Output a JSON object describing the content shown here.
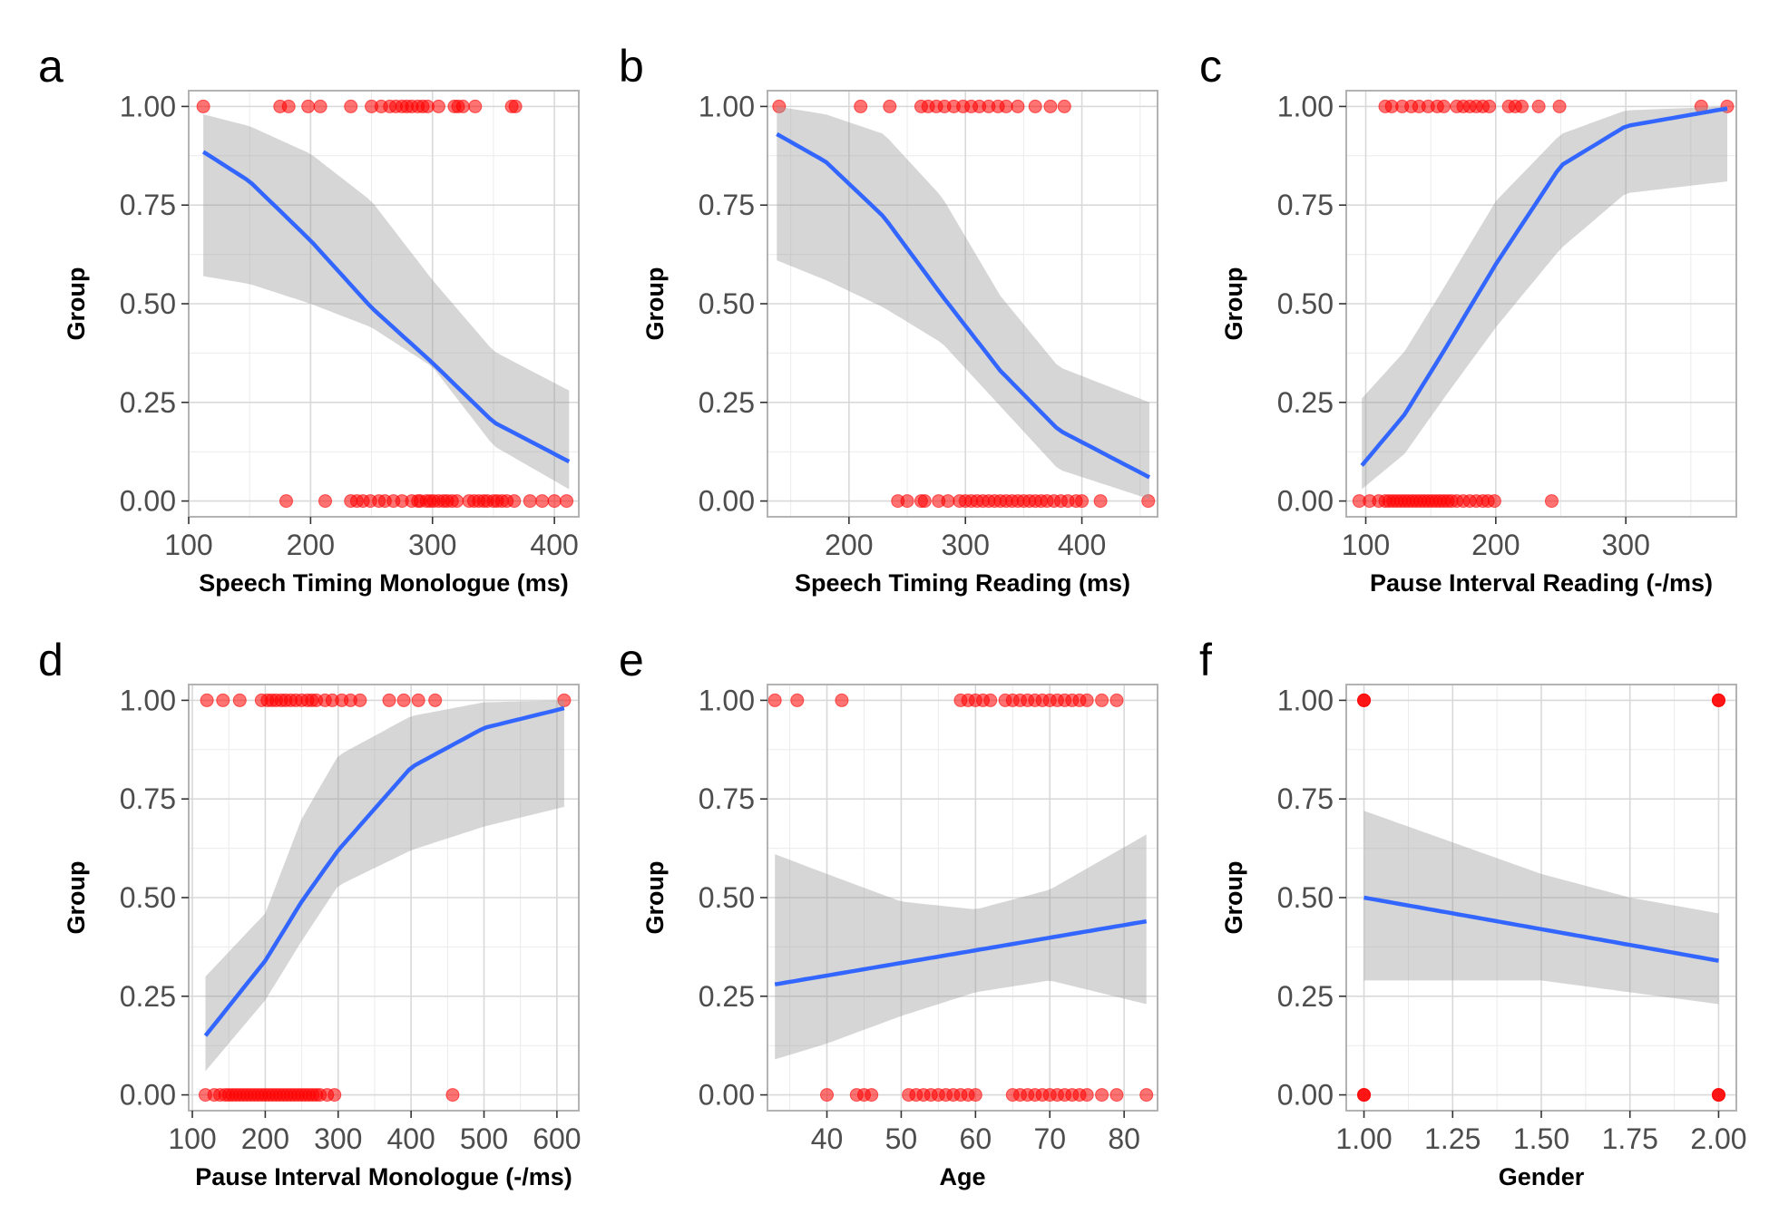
{
  "chart_data": [
    {
      "panel": "a",
      "type": "scatter",
      "xlabel": "Speech Timing Monologue (ms)",
      "ylabel": "Group",
      "xlim": [
        100,
        420
      ],
      "ylim": [
        -0.04,
        1.04
      ],
      "xticks": [
        100,
        200,
        300,
        400
      ],
      "yticks": [
        0,
        0.25,
        0.5,
        0.75,
        1.0
      ],
      "ytick_labels": [
        "0.00",
        "0.25",
        "0.50",
        "0.75",
        "1.00"
      ],
      "points_y1": [
        112,
        175,
        182,
        198,
        208,
        233,
        250,
        258,
        265,
        270,
        275,
        279,
        283,
        288,
        292,
        296,
        305,
        318,
        321,
        325,
        335,
        365,
        368
      ],
      "points_y0": [
        180,
        212,
        233,
        238,
        243,
        249,
        256,
        261,
        268,
        275,
        283,
        288,
        290,
        295,
        298,
        301,
        305,
        309,
        312,
        316,
        320,
        330,
        334,
        338,
        342,
        345,
        350,
        353,
        357,
        361,
        367,
        380,
        390,
        400,
        410
      ],
      "fit": {
        "x": [
          112,
          150,
          200,
          250,
          300,
          350,
          412
        ],
        "y": [
          0.885,
          0.81,
          0.66,
          0.49,
          0.35,
          0.2,
          0.1
        ]
      },
      "ci_upper": [
        0.98,
        0.95,
        0.88,
        0.76,
        0.56,
        0.38,
        0.28
      ],
      "ci_lower": [
        0.57,
        0.55,
        0.5,
        0.44,
        0.34,
        0.14,
        0.03
      ]
    },
    {
      "panel": "b",
      "type": "scatter",
      "xlabel": "Speech Timing Reading (ms)",
      "ylabel": "Group",
      "xlim": [
        130,
        465
      ],
      "ylim": [
        -0.04,
        1.04
      ],
      "xticks": [
        200,
        300,
        400
      ],
      "yticks": [
        0,
        0.25,
        0.5,
        0.75,
        1.0
      ],
      "ytick_labels": [
        "0.00",
        "0.25",
        "0.50",
        "0.75",
        "1.00"
      ],
      "points_y1": [
        140,
        210,
        235,
        262,
        268,
        275,
        282,
        290,
        298,
        305,
        312,
        320,
        328,
        335,
        345,
        360,
        373,
        385
      ],
      "points_y0": [
        242,
        250,
        262,
        265,
        277,
        285,
        295,
        300,
        305,
        310,
        315,
        320,
        325,
        330,
        335,
        340,
        345,
        350,
        355,
        360,
        365,
        370,
        376,
        382,
        388,
        395,
        400,
        416,
        457
      ],
      "fit": {
        "x": [
          138,
          180,
          230,
          280,
          330,
          380,
          458
        ],
        "y": [
          0.93,
          0.86,
          0.72,
          0.52,
          0.33,
          0.18,
          0.06
        ]
      },
      "ci_upper": [
        1.0,
        0.98,
        0.93,
        0.77,
        0.52,
        0.34,
        0.25
      ],
      "ci_lower": [
        0.61,
        0.56,
        0.49,
        0.4,
        0.24,
        0.08,
        0.005
      ]
    },
    {
      "panel": "c",
      "type": "scatter",
      "xlabel": "Pause Interval Reading (-/ms)",
      "ylabel": "Group",
      "xlim": [
        85,
        385
      ],
      "ylim": [
        -0.04,
        1.04
      ],
      "xticks": [
        100,
        200,
        300
      ],
      "yticks": [
        0,
        0.25,
        0.5,
        0.75,
        1.0
      ],
      "ytick_labels": [
        "0.00",
        "0.25",
        "0.50",
        "0.75",
        "1.00"
      ],
      "points_y1": [
        115,
        120,
        128,
        135,
        141,
        148,
        155,
        160,
        170,
        175,
        180,
        185,
        190,
        195,
        210,
        215,
        220,
        233,
        249,
        358,
        378
      ],
      "points_y0": [
        95,
        103,
        110,
        115,
        118,
        121,
        124,
        127,
        130,
        133,
        136,
        139,
        142,
        145,
        148,
        151,
        154,
        157,
        160,
        163,
        166,
        170,
        175,
        180,
        185,
        190,
        194,
        199,
        243
      ],
      "fit": {
        "x": [
          97,
          130,
          160,
          200,
          250,
          300,
          378
        ],
        "y": [
          0.09,
          0.22,
          0.38,
          0.6,
          0.85,
          0.95,
          0.995
        ]
      },
      "ci_upper": [
        0.26,
        0.38,
        0.54,
        0.76,
        0.93,
        0.99,
        1.0
      ],
      "ci_lower": [
        0.03,
        0.12,
        0.26,
        0.44,
        0.64,
        0.78,
        0.81
      ]
    },
    {
      "panel": "d",
      "type": "scatter",
      "xlabel": "Pause Interval Monologue (-/ms)",
      "ylabel": "Group",
      "xlim": [
        95,
        630
      ],
      "ylim": [
        -0.04,
        1.04
      ],
      "xticks": [
        100,
        200,
        300,
        400,
        500,
        600
      ],
      "yticks": [
        0,
        0.25,
        0.5,
        0.75,
        1.0
      ],
      "ytick_labels": [
        "0.00",
        "0.25",
        "0.50",
        "0.75",
        "1.00"
      ],
      "points_y1": [
        120,
        142,
        165,
        195,
        203,
        209,
        215,
        222,
        228,
        235,
        242,
        250,
        258,
        264,
        270,
        282,
        292,
        305,
        317,
        330,
        370,
        390,
        410,
        433,
        610
      ],
      "points_y0": [
        118,
        130,
        138,
        145,
        150,
        155,
        160,
        165,
        170,
        175,
        180,
        185,
        190,
        195,
        200,
        205,
        210,
        215,
        220,
        225,
        230,
        235,
        240,
        245,
        250,
        255,
        260,
        265,
        270,
        275,
        285,
        295,
        457
      ],
      "fit": {
        "x": [
          118,
          200,
          250,
          300,
          400,
          500,
          610
        ],
        "y": [
          0.15,
          0.34,
          0.49,
          0.62,
          0.83,
          0.93,
          0.98
        ]
      },
      "ci_upper": [
        0.3,
        0.46,
        0.7,
        0.86,
        0.96,
        0.995,
        1.0
      ],
      "ci_lower": [
        0.06,
        0.24,
        0.39,
        0.53,
        0.62,
        0.68,
        0.73
      ]
    },
    {
      "panel": "e",
      "type": "scatter",
      "xlabel": "Age",
      "ylabel": "Group",
      "xlim": [
        32,
        84.5
      ],
      "ylim": [
        -0.04,
        1.04
      ],
      "xticks": [
        40,
        50,
        60,
        70,
        80
      ],
      "yticks": [
        0,
        0.25,
        0.5,
        0.75,
        1.0
      ],
      "ytick_labels": [
        "0.00",
        "0.25",
        "0.50",
        "0.75",
        "1.00"
      ],
      "points_y1": [
        33,
        36,
        42,
        58,
        59,
        60,
        61,
        62,
        64,
        65,
        66,
        67,
        68,
        69,
        70,
        71,
        72,
        73,
        74,
        75,
        77,
        79
      ],
      "points_y0": [
        40,
        44,
        45,
        46,
        51,
        52,
        53,
        54,
        55,
        56,
        57,
        58,
        59,
        60,
        65,
        66,
        67,
        68,
        69,
        70,
        71,
        72,
        73,
        74,
        75,
        77,
        79,
        83
      ],
      "fit": {
        "x": [
          33,
          83
        ],
        "y": [
          0.28,
          0.44
        ]
      },
      "fit_x_grid": [
        33,
        40,
        50,
        60,
        70,
        83
      ],
      "ci_upper": [
        0.61,
        0.56,
        0.49,
        0.47,
        0.52,
        0.66
      ],
      "ci_lower": [
        0.09,
        0.13,
        0.2,
        0.26,
        0.29,
        0.23
      ]
    },
    {
      "panel": "f",
      "type": "scatter",
      "xlabel": "Gender",
      "ylabel": "Group",
      "xlim": [
        0.95,
        2.05
      ],
      "ylim": [
        -0.04,
        1.04
      ],
      "xticks": [
        1.0,
        1.25,
        1.5,
        1.75,
        2.0
      ],
      "xtick_labels": [
        "1.00",
        "1.25",
        "1.50",
        "1.75",
        "2.00"
      ],
      "yticks": [
        0,
        0.25,
        0.5,
        0.75,
        1.0
      ],
      "ytick_labels": [
        "0.00",
        "0.25",
        "0.50",
        "0.75",
        "1.00"
      ],
      "points_y1": [
        1.0,
        1.0,
        1.0,
        2.0,
        2.0,
        2.0
      ],
      "points_y0": [
        1.0,
        1.0,
        1.0,
        2.0,
        2.0,
        2.0
      ],
      "fit": {
        "x": [
          1.0,
          2.0
        ],
        "y": [
          0.5,
          0.34
        ]
      },
      "fit_x_grid": [
        1.0,
        1.25,
        1.5,
        1.75,
        2.0
      ],
      "ci_upper": [
        0.72,
        0.64,
        0.56,
        0.5,
        0.46
      ],
      "ci_lower": [
        0.29,
        0.29,
        0.29,
        0.26,
        0.23
      ]
    }
  ],
  "colors": {
    "points": "#ff0000",
    "fit_line": "#3366ff",
    "ci_band": "#999999",
    "grid_major": "#d9d9d9",
    "grid_minor": "#ebebeb",
    "panel_border": "#b3b3b3"
  }
}
